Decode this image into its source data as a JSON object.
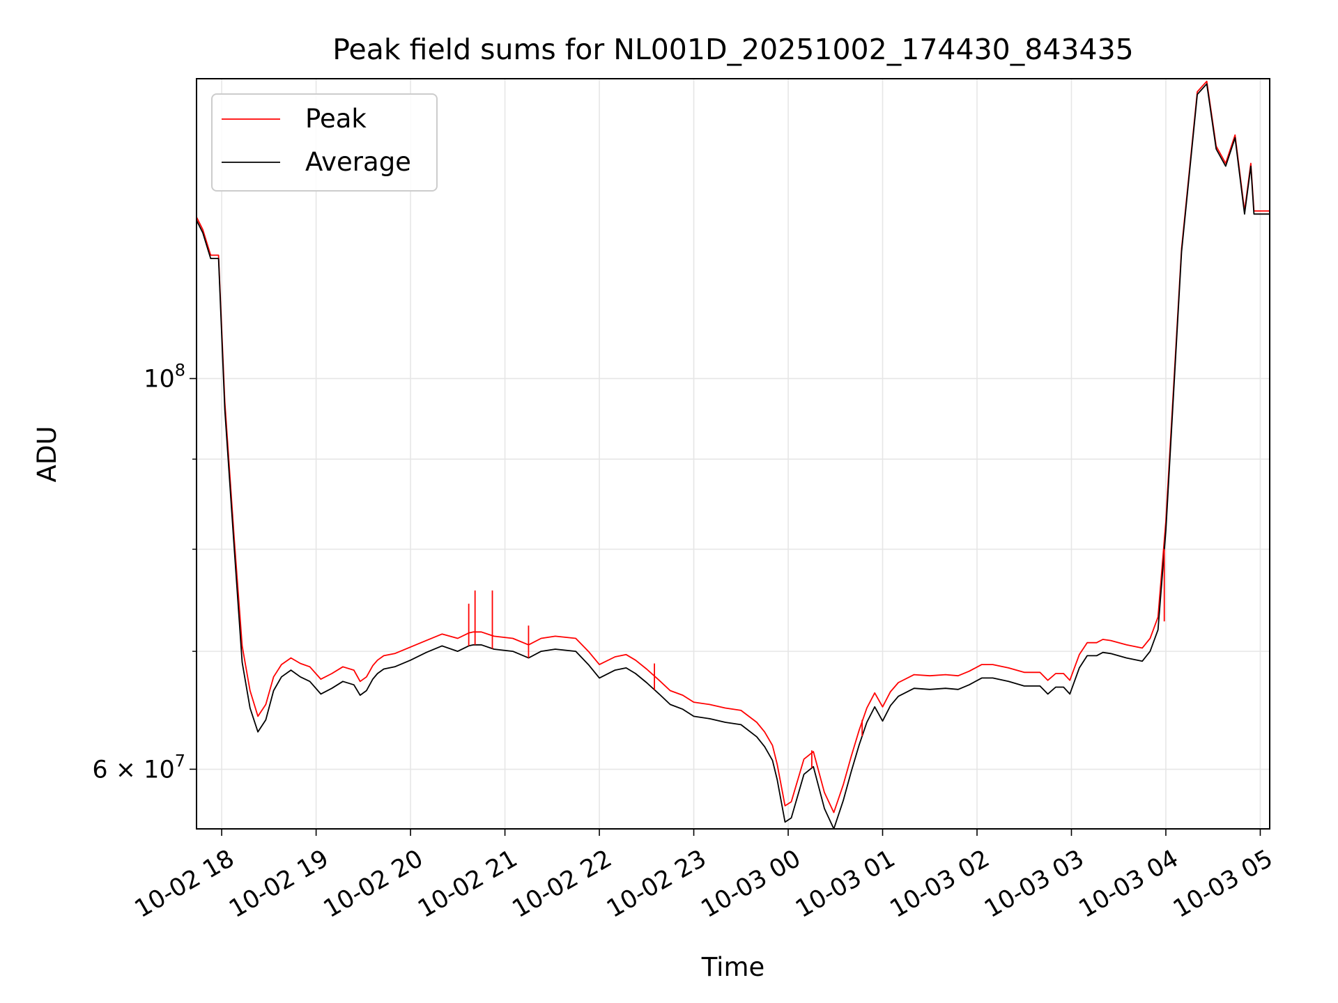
{
  "chart_data": {
    "type": "line",
    "title": "Peak field sums for NL001D_20251002_174430_843435",
    "xlabel": "Time",
    "ylabel": "ADU",
    "y_scale": "log",
    "ylim": [
      55500000,
      148000000
    ],
    "xlim": [
      "10-02 17:44",
      "10-03 05:06"
    ],
    "grid": true,
    "legend_position": "upper-left",
    "colors": {
      "peak": "#ff0000",
      "average": "#000000",
      "grid": "#e6e6e6"
    },
    "x_tick_labels": [
      "10-02 18",
      "10-02 19",
      "10-02 20",
      "10-02 21",
      "10-02 22",
      "10-02 23",
      "10-03 00",
      "10-03 01",
      "10-03 02",
      "10-03 03",
      "10-03 04",
      "10-03 05"
    ],
    "y_major_ticks": [
      {
        "value": 100000000,
        "base": "10",
        "exp": "8",
        "mult": ""
      },
      {
        "value": 60000000,
        "base": "10",
        "exp": "7",
        "mult": "6 × "
      }
    ],
    "y_minor_ticks": [
      70000000,
      80000000,
      90000000,
      200000000
    ],
    "x": [
      "10-02 17:44",
      "10-02 17:48",
      "10-02 17:53",
      "10-02 17:58",
      "10-02 18:02",
      "10-02 18:08",
      "10-02 18:13",
      "10-02 18:18",
      "10-02 18:23",
      "10-02 18:28",
      "10-02 18:33",
      "10-02 18:38",
      "10-02 18:44",
      "10-02 18:50",
      "10-02 18:56",
      "10-02 19:03",
      "10-02 19:10",
      "10-02 19:17",
      "10-02 19:24",
      "10-02 19:28",
      "10-02 19:32",
      "10-02 19:36",
      "10-02 19:39",
      "10-02 19:43",
      "10-02 19:50",
      "10-02 20:00",
      "10-02 20:10",
      "10-02 20:20",
      "10-02 20:30",
      "10-02 20:37",
      "10-02 20:40",
      "10-02 20:45",
      "10-02 20:53",
      "10-02 21:05",
      "10-02 21:15",
      "10-02 21:23",
      "10-02 21:32",
      "10-02 21:45",
      "10-02 21:53",
      "10-02 22:00",
      "10-02 22:10",
      "10-02 22:17",
      "10-02 22:23",
      "10-02 22:30",
      "10-02 22:38",
      "10-02 22:45",
      "10-02 22:53",
      "10-02 23:00",
      "10-02 23:10",
      "10-02 23:20",
      "10-02 23:30",
      "10-02 23:40",
      "10-02 23:45",
      "10-02 23:50",
      "10-02 23:53",
      "10-02 23:58",
      "10-03 00:02",
      "10-03 00:10",
      "10-03 00:16",
      "10-03 00:23",
      "10-03 00:29",
      "10-03 00:35",
      "10-03 00:40",
      "10-03 00:45",
      "10-03 00:50",
      "10-03 00:55",
      "10-03 01:00",
      "10-03 01:05",
      "10-03 01:10",
      "10-03 01:20",
      "10-03 01:30",
      "10-03 01:40",
      "10-03 01:48",
      "10-03 01:55",
      "10-03 02:03",
      "10-03 02:10",
      "10-03 02:20",
      "10-03 02:30",
      "10-03 02:40",
      "10-03 02:45",
      "10-03 02:50",
      "10-03 02:55",
      "10-03 02:59",
      "10-03 03:05",
      "10-03 03:10",
      "10-03 03:16",
      "10-03 03:20",
      "10-03 03:25",
      "10-03 03:35",
      "10-03 03:45",
      "10-03 03:50",
      "10-03 03:55",
      "10-03 04:00",
      "10-03 04:10",
      "10-03 04:20",
      "10-03 04:26",
      "10-03 04:32",
      "10-03 04:38",
      "10-03 04:44",
      "10-03 04:50",
      "10-03 04:54",
      "10-03 04:56",
      "10-03 04:58",
      "10-03 05:00",
      "10-03 05:02",
      "10-03 05:04",
      "10-03 05:05",
      "10-03 05:06"
    ],
    "series": [
      {
        "name": "Average",
        "key": "average",
        "values": [
          123000000,
          121000000,
          117000000,
          117000000,
          96000000,
          80000000,
          69000000,
          65000000,
          63000000,
          64000000,
          66500000,
          67700000,
          68300000,
          67700000,
          67300000,
          66200000,
          66700000,
          67300000,
          67000000,
          66100000,
          66500000,
          67500000,
          68000000,
          68400000,
          68600000,
          69200000,
          69900000,
          70500000,
          70000000,
          70500000,
          70600000,
          70600000,
          70200000,
          70000000,
          69400000,
          70000000,
          70200000,
          70000000,
          68800000,
          67600000,
          68300000,
          68500000,
          68000000,
          67200000,
          66200000,
          65300000,
          64900000,
          64300000,
          64100000,
          63800000,
          63600000,
          62600000,
          61800000,
          60700000,
          59200000,
          56000000,
          56300000,
          59600000,
          60200000,
          57000000,
          55500000,
          57600000,
          59800000,
          61900000,
          63800000,
          65100000,
          63900000,
          65200000,
          66000000,
          66700000,
          66600000,
          66700000,
          66600000,
          67000000,
          67600000,
          67600000,
          67300000,
          66900000,
          66900000,
          66200000,
          66800000,
          66800000,
          66200000,
          68500000,
          69600000,
          69600000,
          69900000,
          69800000,
          69400000,
          69100000,
          70000000,
          72000000,
          82000000,
          118000000,
          145000000,
          147000000,
          135000000,
          132000000,
          137000000,
          124000000,
          132000000,
          124000000,
          124000000,
          124000000,
          124000000,
          124000000,
          124000000,
          124000000
        ]
      },
      {
        "name": "Peak",
        "key": "peak",
        "values": [
          123500000,
          121500000,
          117500000,
          117500000,
          97000000,
          81000000,
          70500000,
          66500000,
          64300000,
          65300000,
          67700000,
          68800000,
          69400000,
          68900000,
          68600000,
          67500000,
          68000000,
          68600000,
          68300000,
          67300000,
          67700000,
          68700000,
          69200000,
          69600000,
          69800000,
          70400000,
          71000000,
          71600000,
          71200000,
          71700000,
          71800000,
          71800000,
          71400000,
          71200000,
          70600000,
          71200000,
          71400000,
          71200000,
          70000000,
          68800000,
          69500000,
          69700000,
          69200000,
          68400000,
          67400000,
          66500000,
          66100000,
          65500000,
          65300000,
          65000000,
          64800000,
          63800000,
          63000000,
          61900000,
          60400000,
          57200000,
          57500000,
          60800000,
          61400000,
          58200000,
          56700000,
          58800000,
          61000000,
          63100000,
          65000000,
          66300000,
          65100000,
          66400000,
          67200000,
          67900000,
          67800000,
          67900000,
          67800000,
          68200000,
          68800000,
          68800000,
          68500000,
          68100000,
          68100000,
          67400000,
          68000000,
          68000000,
          67400000,
          69700000,
          70800000,
          70800000,
          71100000,
          71000000,
          70600000,
          70300000,
          71200000,
          73200000,
          83000000,
          118500000,
          145500000,
          147500000,
          135500000,
          132500000,
          137500000,
          124500000,
          132500000,
          124500000,
          124500000,
          124500000,
          124500000,
          124500000,
          124500000,
          124500000
        ]
      }
    ],
    "spikes": [
      {
        "x": "10-02 20:37",
        "value": 74500000
      },
      {
        "x": "10-02 20:41",
        "value": 75800000
      },
      {
        "x": "10-02 20:52",
        "value": 75800000
      },
      {
        "x": "10-02 21:15",
        "value": 72400000
      },
      {
        "x": "10-02 22:35",
        "value": 68900000
      },
      {
        "x": "10-03 00:15",
        "value": 61500000
      },
      {
        "x": "10-03 00:47",
        "value": 64000000
      },
      {
        "x": "10-03 03:59",
        "value": 72800000
      }
    ]
  }
}
